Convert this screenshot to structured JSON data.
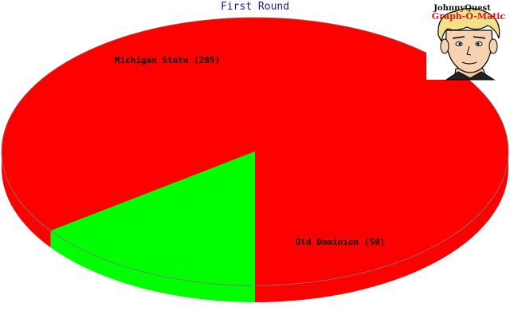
{
  "chart_data": {
    "type": "pie",
    "title": "First Round",
    "style": "3d",
    "slices": [
      {
        "label": "Michigan State",
        "value": 285,
        "display": "Michigan State (285)",
        "color": "#ff0000"
      },
      {
        "label": "Old Dominion",
        "value": 50,
        "display": "Old Dominion (50)",
        "color": "#00ff00"
      }
    ]
  },
  "logo": {
    "line1": "JohnnyQuest",
    "line2": "Graph-O-Matic",
    "icon": "cartoon-boy-face-icon"
  }
}
